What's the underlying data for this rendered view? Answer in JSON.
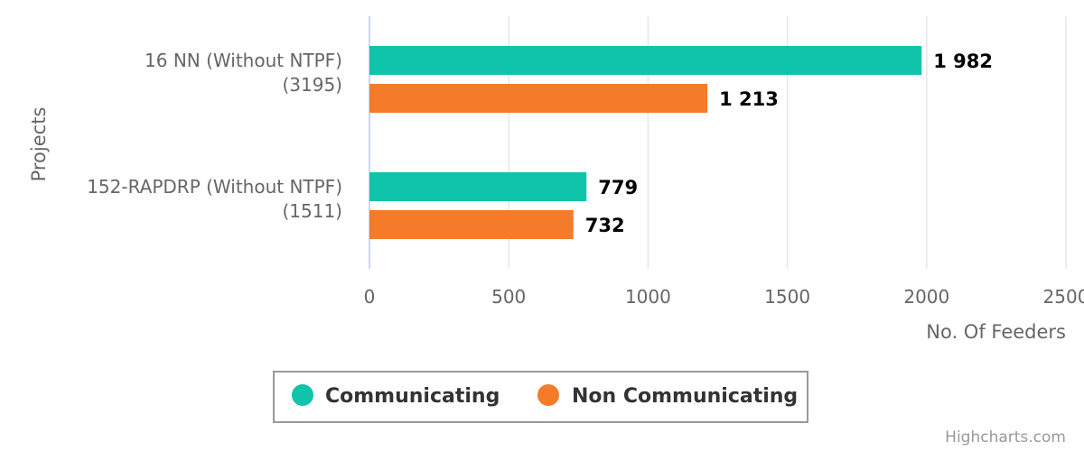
{
  "chart_data": {
    "type": "bar",
    "orientation": "horizontal",
    "categories": [
      [
        "16 NN (Without NTPF)",
        "(3195)"
      ],
      [
        "152-RAPDRP (Without NTPF)",
        "(1511)"
      ]
    ],
    "series": [
      {
        "name": "Communicating",
        "color": "#0fc4aa",
        "values": [
          1982,
          779
        ],
        "labels": [
          "1 982",
          "779"
        ]
      },
      {
        "name": "Non Communicating",
        "color": "#f47b2a",
        "values": [
          1213,
          732
        ],
        "labels": [
          "1 213",
          "732"
        ]
      }
    ],
    "xlabel": "No. Of Feeders",
    "ylabel": "Projects",
    "xlim": [
      0,
      2500
    ],
    "xticks": [
      0,
      500,
      1000,
      1500,
      2000,
      2500
    ],
    "grid": true,
    "legend": "bottom-center"
  },
  "credits": "Highcharts.com"
}
